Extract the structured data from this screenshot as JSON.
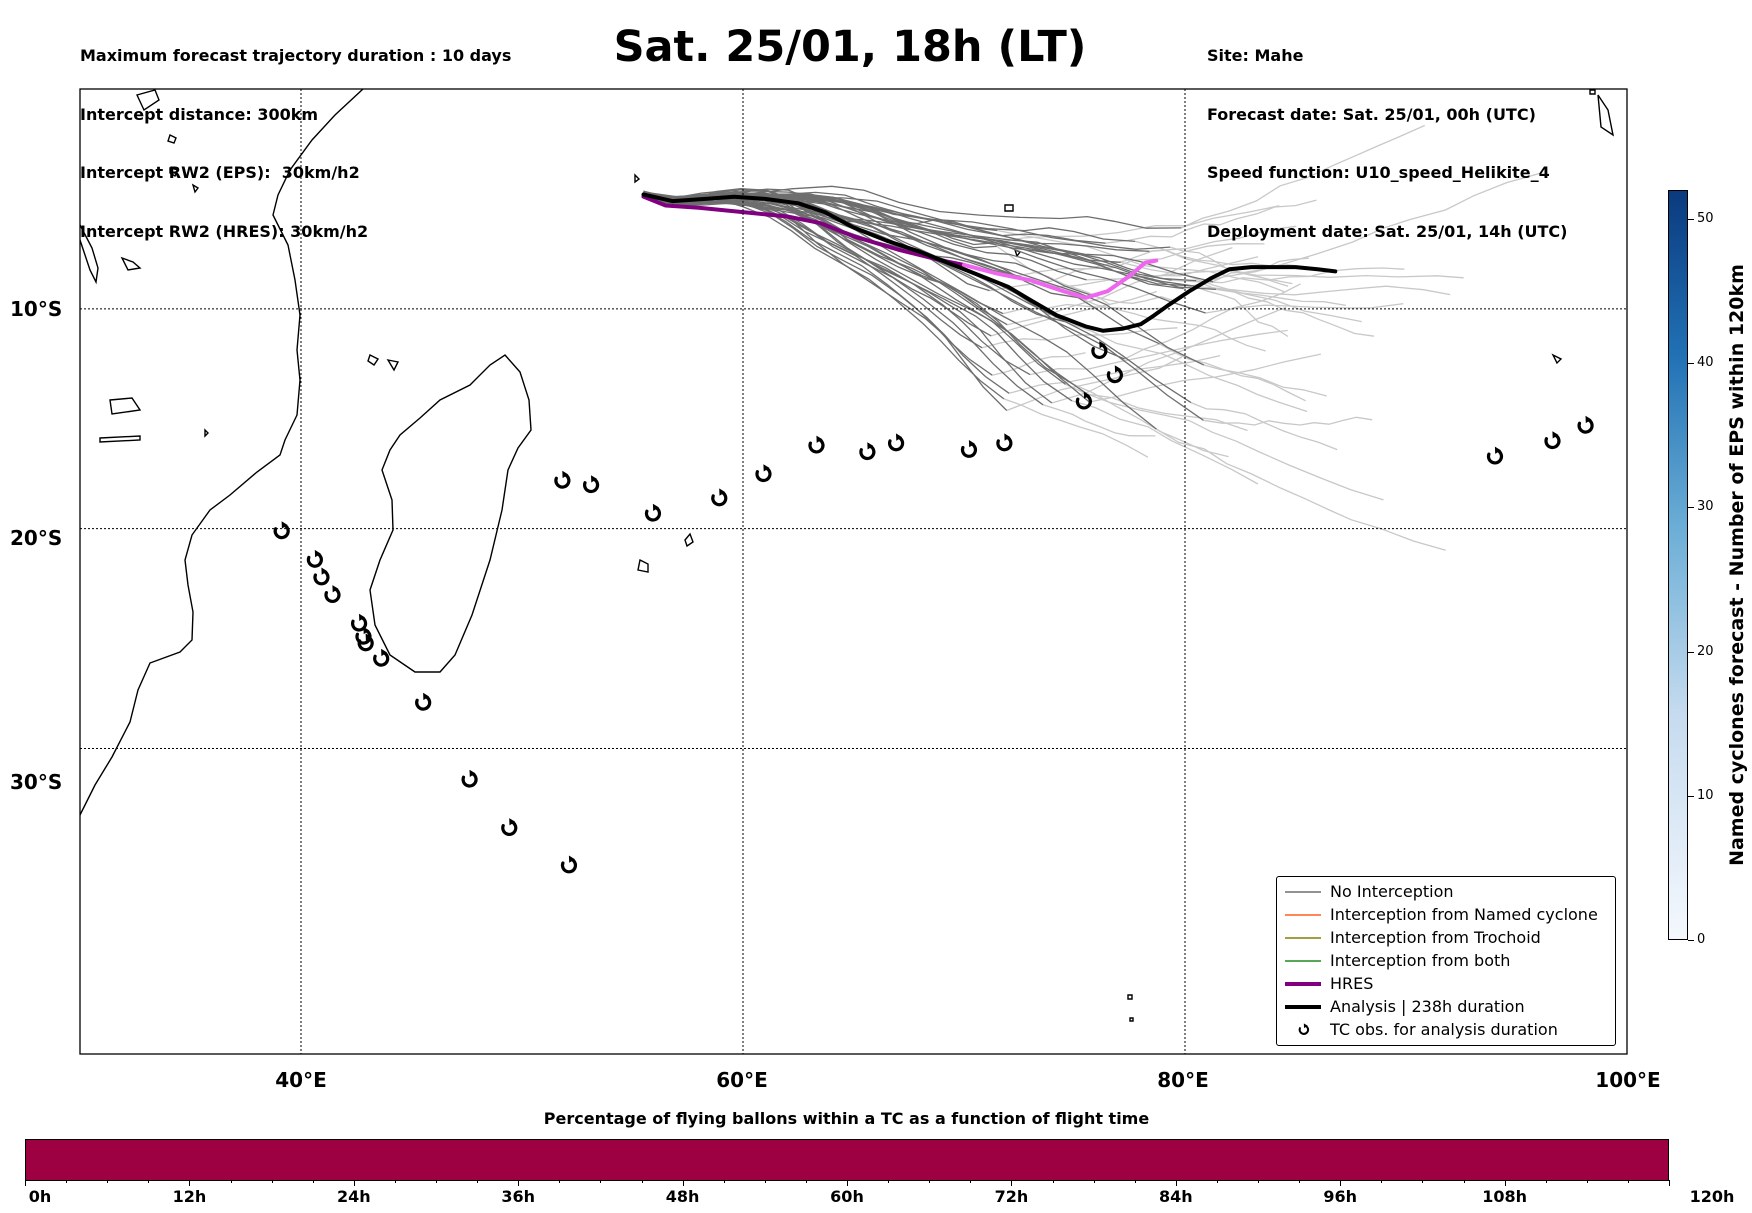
{
  "header_left": [
    "Maximum forecast trajectory duration : 10 days",
    "Intercept distance: 300km",
    "Intercept RW2 (EPS):  30km/h2",
    "Intercept RW2 (HRES): 30km/h2"
  ],
  "title": "Sat. 25/01, 18h (LT)",
  "header_right": [
    "Site: Mahe",
    "Forecast date: Sat. 25/01, 00h (UTC)",
    "Speed function: U10_speed_Helikite_4",
    "Deployment date: Sat. 25/01, 14h (UTC)"
  ],
  "map": {
    "lon_range": [
      30,
      100
    ],
    "lat_range": [
      -43.9,
      0
    ],
    "lat_labels": [
      {
        "lat": -10,
        "text": "10°S"
      },
      {
        "lat": -20,
        "text": "20°S"
      },
      {
        "lat": -30,
        "text": "30°S"
      }
    ],
    "lon_labels": [
      {
        "lon": 40,
        "text": "40°E"
      },
      {
        "lon": 60,
        "text": "60°E"
      },
      {
        "lon": 80,
        "text": "80°E"
      },
      {
        "lon": 100,
        "text": "100°E"
      }
    ],
    "colors": {
      "no_interception": "#6e6e6e",
      "faded": "#c8c8c8",
      "named_cyclone": "#ff5e1f",
      "trochoid": "#808000",
      "both": "#228b22",
      "hres": "#800080",
      "hres_late": "#ee66ee",
      "analysis": "#000000"
    },
    "hres_track": [
      [
        55.5,
        -4.9
      ],
      [
        56.5,
        -5.3
      ],
      [
        58,
        -5.4
      ],
      [
        60,
        -5.6
      ],
      [
        62,
        -5.8
      ],
      [
        63.5,
        -6.1
      ],
      [
        65,
        -6.7
      ],
      [
        67,
        -7.3
      ],
      [
        69,
        -7.8
      ],
      [
        70,
        -8.0
      ]
    ],
    "hres_track_late": [
      [
        70,
        -8.0
      ],
      [
        71.5,
        -8.4
      ],
      [
        73,
        -8.7
      ],
      [
        74.5,
        -9.2
      ],
      [
        75.5,
        -9.5
      ],
      [
        76.5,
        -9.2
      ],
      [
        77.5,
        -8.5
      ],
      [
        78.2,
        -7.9
      ],
      [
        78.7,
        -7.8
      ]
    ],
    "analysis_track": [
      [
        55.5,
        -4.8
      ],
      [
        56.8,
        -5.1
      ],
      [
        58.3,
        -5.0
      ],
      [
        59.6,
        -4.9
      ],
      [
        61,
        -5.0
      ],
      [
        62.5,
        -5.2
      ],
      [
        63.7,
        -5.6
      ],
      [
        65,
        -6.3
      ],
      [
        66.5,
        -6.9
      ],
      [
        68,
        -7.4
      ],
      [
        69.5,
        -8.0
      ],
      [
        71,
        -8.6
      ],
      [
        72,
        -9.0
      ],
      [
        73,
        -9.6
      ],
      [
        74.2,
        -10.3
      ],
      [
        75.5,
        -10.8
      ],
      [
        76.3,
        -11.0
      ],
      [
        77.2,
        -10.9
      ],
      [
        78,
        -10.7
      ],
      [
        78.6,
        -10.3
      ],
      [
        79.3,
        -9.8
      ],
      [
        80.2,
        -9.2
      ],
      [
        81.2,
        -8.6
      ],
      [
        82,
        -8.2
      ],
      [
        83,
        -8.1
      ],
      [
        84,
        -8.1
      ],
      [
        85,
        -8.1
      ],
      [
        86,
        -8.2
      ],
      [
        86.8,
        -8.3
      ]
    ],
    "tc_obs": [
      [
        39.1,
        -20.1
      ],
      [
        40.6,
        -21.4
      ],
      [
        40.9,
        -22.2
      ],
      [
        41.4,
        -23.0
      ],
      [
        42.6,
        -24.3
      ],
      [
        42.8,
        -24.9
      ],
      [
        42.9,
        -25.2
      ],
      [
        43.6,
        -25.9
      ],
      [
        45.5,
        -27.9
      ],
      [
        47.6,
        -31.4
      ],
      [
        49.4,
        -33.6
      ],
      [
        52.1,
        -35.3
      ],
      [
        51.8,
        -17.8
      ],
      [
        53.1,
        -18.0
      ],
      [
        55.9,
        -19.3
      ],
      [
        58.9,
        -18.6
      ],
      [
        60.9,
        -17.5
      ],
      [
        63.3,
        -16.2
      ],
      [
        65.6,
        -16.5
      ],
      [
        66.9,
        -16.1
      ],
      [
        70.2,
        -16.4
      ],
      [
        71.8,
        -16.1
      ],
      [
        75.4,
        -14.2
      ],
      [
        76.1,
        -11.9
      ],
      [
        76.8,
        -13.0
      ],
      [
        94.0,
        -16.7
      ],
      [
        96.6,
        -16.0
      ],
      [
        98.1,
        -15.3
      ]
    ]
  },
  "legend": [
    {
      "key": "no_interception",
      "label": "No Interception"
    },
    {
      "key": "named_cyclone",
      "label": "Interception from Named cyclone"
    },
    {
      "key": "trochoid",
      "label": "Interception from Trochoid"
    },
    {
      "key": "both",
      "label": "Interception from both"
    },
    {
      "key": "hres",
      "label": "HRES"
    },
    {
      "key": "analysis",
      "label": "Analysis | 238h duration"
    },
    {
      "key": "tc_obs",
      "label": "TC obs. for analysis duration"
    }
  ],
  "vertical_colorbar": {
    "title": "Named cyclones forecast - Number of EPS within 120km",
    "range": [
      0,
      52
    ],
    "ticks": [
      0,
      10,
      20,
      30,
      40,
      50
    ],
    "color_low": "#f4f8fd",
    "color_high": "#0b3a7e"
  },
  "horizontal_colorbar": {
    "title": "Percentage of flying ballons within a TC as a function of flight time",
    "color": "#9e0142",
    "ticks": [
      "0h",
      "12h",
      "24h",
      "36h",
      "48h",
      "60h",
      "72h",
      "84h",
      "96h",
      "108h",
      "120h"
    ]
  }
}
